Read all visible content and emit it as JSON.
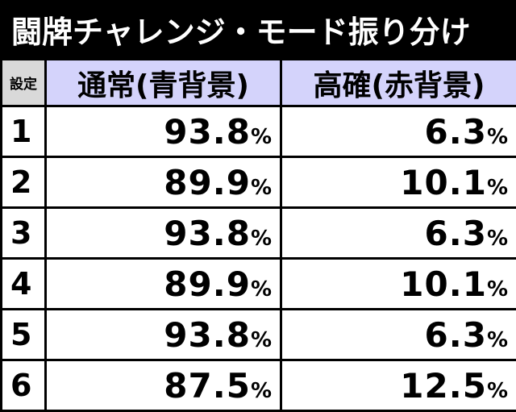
{
  "title": "闘牌チャレンジ・モード振り分け",
  "header": {
    "setting": "設定",
    "normal": "通常(青背景)",
    "high": "高確(赤背景)"
  },
  "percent_sign": "%",
  "rows": [
    {
      "setting": "1",
      "normal": "93.8",
      "high": "6.3"
    },
    {
      "setting": "2",
      "normal": "89.9",
      "high": "10.1"
    },
    {
      "setting": "3",
      "normal": "93.8",
      "high": "6.3"
    },
    {
      "setting": "4",
      "normal": "89.9",
      "high": "10.1"
    },
    {
      "setting": "5",
      "normal": "93.8",
      "high": "6.3"
    },
    {
      "setting": "6",
      "normal": "87.5",
      "high": "12.5"
    }
  ],
  "colors": {
    "background": "#000000",
    "title_text": "#ffffff",
    "header_bg": "#d4d3fb",
    "setting_header_bg": "#d9d9d9",
    "cell_bg": "#ffffff",
    "cell_text": "#000000"
  }
}
